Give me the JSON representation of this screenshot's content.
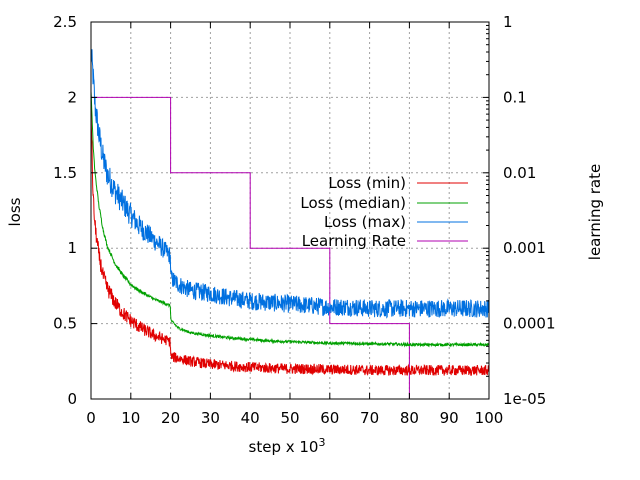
{
  "chart_data": {
    "type": "line",
    "xlabel": "step x 10",
    "xlabel_sup": "3",
    "ylabel": "loss",
    "y2label": "learning rate",
    "xlim": [
      0,
      100
    ],
    "ylim": [
      0,
      2.5
    ],
    "y2lim": [
      1e-05,
      1
    ],
    "y2scale": "log",
    "grid": true,
    "legend_position": "center-right",
    "x_ticks": [
      "0",
      "10",
      "20",
      "30",
      "40",
      "50",
      "60",
      "70",
      "80",
      "90",
      "100"
    ],
    "y_ticks": [
      "0",
      "0.5",
      "1",
      "1.5",
      "2",
      "2.5"
    ],
    "y2_ticks": [
      "1e-05",
      "0.0001",
      "0.001",
      "0.01",
      "0.1",
      "1"
    ],
    "series": [
      {
        "name": "Loss (min)",
        "color": "#e00000",
        "axis": "left",
        "x": [
          0,
          0.5,
          1,
          2,
          3,
          4,
          6,
          8,
          10,
          12,
          14,
          16,
          18,
          19.9,
          20.1,
          22,
          25,
          30,
          35,
          40,
          45,
          50,
          55,
          60,
          65,
          70,
          75,
          80,
          85,
          90,
          95,
          100
        ],
        "y": [
          1.95,
          1.35,
          1.15,
          0.95,
          0.82,
          0.74,
          0.64,
          0.57,
          0.52,
          0.48,
          0.45,
          0.42,
          0.4,
          0.38,
          0.28,
          0.27,
          0.25,
          0.23,
          0.22,
          0.21,
          0.205,
          0.2,
          0.2,
          0.195,
          0.195,
          0.19,
          0.19,
          0.19,
          0.19,
          0.19,
          0.19,
          0.19
        ],
        "noise": 0.035
      },
      {
        "name": "Loss (median)",
        "color": "#00a000",
        "axis": "left",
        "x": [
          0,
          0.5,
          1,
          2,
          3,
          4,
          6,
          8,
          10,
          12,
          14,
          16,
          18,
          19.9,
          20.1,
          22,
          25,
          30,
          35,
          40,
          45,
          50,
          55,
          60,
          65,
          70,
          75,
          80,
          85,
          90,
          95,
          100
        ],
        "y": [
          2.05,
          1.7,
          1.5,
          1.28,
          1.13,
          1.02,
          0.9,
          0.82,
          0.76,
          0.72,
          0.69,
          0.66,
          0.64,
          0.62,
          0.52,
          0.47,
          0.44,
          0.42,
          0.405,
          0.395,
          0.385,
          0.38,
          0.375,
          0.37,
          0.37,
          0.365,
          0.365,
          0.36,
          0.36,
          0.36,
          0.36,
          0.36
        ],
        "noise": 0.009
      },
      {
        "name": "Loss (max)",
        "color": "#0070e0",
        "axis": "left",
        "x": [
          0,
          0.5,
          1,
          2,
          3,
          4,
          6,
          8,
          10,
          12,
          14,
          16,
          18,
          19.9,
          20.1,
          22,
          25,
          30,
          35,
          40,
          45,
          50,
          55,
          60,
          65,
          70,
          75,
          80,
          85,
          90,
          95,
          100
        ],
        "y": [
          2.3,
          2.15,
          1.95,
          1.75,
          1.6,
          1.5,
          1.38,
          1.3,
          1.22,
          1.15,
          1.1,
          1.05,
          1.0,
          0.95,
          0.8,
          0.76,
          0.72,
          0.7,
          0.67,
          0.65,
          0.64,
          0.63,
          0.62,
          0.61,
          0.61,
          0.6,
          0.6,
          0.6,
          0.6,
          0.6,
          0.6,
          0.6
        ],
        "noise": 0.06
      },
      {
        "name": "Learning Rate",
        "color": "#b000b0",
        "axis": "right",
        "x": [
          0,
          20,
          20,
          40,
          40,
          60,
          60,
          80,
          80
        ],
        "y": [
          0.1,
          0.1,
          0.01,
          0.01,
          0.001,
          0.001,
          0.0001,
          0.0001,
          1e-05
        ]
      }
    ]
  }
}
